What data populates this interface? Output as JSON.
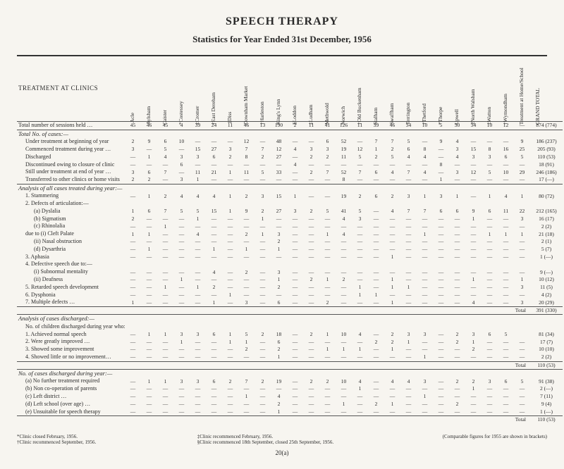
{
  "title": "SPEECH THERAPY",
  "subtitle": "Statistics for Year Ended 31st December, 1956",
  "side_label": "TREATMENT AT CLINICS",
  "columns": [
    "Acle",
    "Aylsham",
    "Caister",
    "*Costessey",
    "‡Cromer",
    "†East Dereham",
    "‡Diss",
    "Downham Market",
    "†Harleston",
    "King's Lynn",
    "§Loddon",
    "‡Ludham",
    "Methwold",
    "Norwich",
    "†Old Buckenham",
    "Stalham",
    "Swaffham",
    "Terrington",
    "†Thetford",
    "*Thorpe",
    "Upwell",
    "2North Walsham",
    "‡Watton",
    "†Wymondham",
    "Treatment at Home/School",
    "GRAND TOTAL"
  ],
  "groups": [
    {
      "rows": [
        {
          "label": "Total number of sessions held …",
          "cells": [
            "45",
            "46",
            "45",
            "4",
            "39",
            "24",
            "11",
            "46",
            "13",
            "190",
            "2",
            "11",
            "41",
            "126",
            "11",
            "39",
            "46",
            "34",
            "10",
            "5",
            "30",
            "34",
            "10",
            "12",
            "—",
            "874 (774)"
          ]
        }
      ]
    },
    {
      "header": "Total No. of cases:—",
      "rows": [
        {
          "label": "Under treatment at beginning of year",
          "sub": 1,
          "cells": [
            "2",
            "9",
            "6",
            "10",
            "—",
            "—",
            "—",
            "12",
            "—",
            "48",
            "—",
            "—",
            "6",
            "52",
            "—",
            "7",
            "7",
            "5",
            "—",
            "9",
            "4",
            "—",
            "—",
            "—",
            "9",
            "186 (237)"
          ]
        },
        {
          "label": "Commenced treatment during year …",
          "sub": 1,
          "cells": [
            "3",
            "—",
            "5",
            "—",
            "15",
            "27",
            "3",
            "7",
            "7",
            "12",
            "4",
            "3",
            "3",
            "19",
            "12",
            "1",
            "2",
            "6",
            "8",
            "—",
            "3",
            "15",
            "8",
            "16",
            "25",
            "205 (93)"
          ]
        },
        {
          "label": "Discharged",
          "sub": 1,
          "cells": [
            "—",
            "1",
            "4",
            "3",
            "3",
            "6",
            "2",
            "8",
            "2",
            "27",
            "—",
            "2",
            "2",
            "11",
            "5",
            "2",
            "5",
            "4",
            "4",
            "—",
            "4",
            "3",
            "3",
            "6",
            "5",
            "110 (53)"
          ]
        },
        {
          "label": "Discontinued owing to closure of clinic",
          "sub": 1,
          "cells": [
            "—",
            "—",
            "—",
            "6",
            "—",
            "—",
            "—",
            "—",
            "—",
            "—",
            "4",
            "—",
            "—",
            "—",
            "—",
            "—",
            "—",
            "—",
            "—",
            "8",
            "—",
            "—",
            "—",
            "—",
            "—",
            "18 (91)"
          ]
        },
        {
          "label": "Still under treatment at end of year …",
          "sub": 1,
          "cells": [
            "3",
            "6",
            "7",
            "—",
            "11",
            "21",
            "1",
            "11",
            "5",
            "33",
            "—",
            "2",
            "7",
            "52",
            "7",
            "6",
            "4",
            "7",
            "4",
            "—",
            "3",
            "12",
            "5",
            "10",
            "29",
            "246 (186)"
          ]
        },
        {
          "label": "Transferred to other clinics or home visits",
          "sub": 1,
          "cells": [
            "2",
            "2",
            "—",
            "3",
            "1",
            "—",
            "—",
            "—",
            "—",
            "—",
            "—",
            "—",
            "—",
            "8",
            "—",
            "—",
            "—",
            "—",
            "—",
            "1",
            "—",
            "—",
            "—",
            "—",
            "—",
            "17 (—)"
          ]
        }
      ]
    },
    {
      "header": "Analysis of all cases treated during year:—",
      "rows": [
        {
          "label": "1. Stammering",
          "sub": 1,
          "cells": [
            "—",
            "1",
            "2",
            "4",
            "4",
            "4",
            "1",
            "2",
            "3",
            "15",
            "1",
            "—",
            "—",
            "19",
            "2",
            "6",
            "2",
            "3",
            "1",
            "3",
            "1",
            "—",
            "1",
            "4",
            "1",
            "80 (72)"
          ]
        },
        {
          "label": "2. Defects of articulation:—",
          "sub": 1,
          "cells": [
            "",
            "",
            "",
            "",
            "",
            "",
            "",
            "",
            "",
            "",
            "",
            "",
            "",
            "",
            "",
            "",
            "",
            "",
            "",
            "",
            "",
            "",
            "",
            "",
            "",
            ""
          ]
        },
        {
          "label": "(a) Dyslalia",
          "sub": 2,
          "cells": [
            "1",
            "6",
            "7",
            "5",
            "5",
            "15",
            "1",
            "9",
            "2",
            "27",
            "3",
            "2",
            "5",
            "41",
            "5",
            "—",
            "4",
            "7",
            "7",
            "6",
            "6",
            "9",
            "6",
            "11",
            "22",
            "212 (165)"
          ]
        },
        {
          "label": "(b) Sigmatism",
          "sub": 2,
          "cells": [
            "2",
            "—",
            "—",
            "—",
            "1",
            "—",
            "—",
            "—",
            "1",
            "—",
            "—",
            "—",
            "—",
            "4",
            "3",
            "—",
            "—",
            "—",
            "—",
            "—",
            "—",
            "1",
            "—",
            "—",
            "3",
            "16 (17)"
          ]
        },
        {
          "label": "(c) Rhinolalia",
          "sub": 2,
          "cells": [
            "—",
            "—",
            "1",
            "—",
            "—",
            "—",
            "—",
            "—",
            "—",
            "—",
            "—",
            "—",
            "—",
            "—",
            "—",
            "—",
            "—",
            "—",
            "—",
            "—",
            "—",
            "—",
            "—",
            "—",
            "—",
            "2 (2)"
          ]
        },
        {
          "label": "due to (i) Cleft Palate",
          "sub": 1,
          "cells": [
            "1",
            "1",
            "—",
            "—",
            "4",
            "—",
            "—",
            "2",
            "1",
            "3",
            "—",
            "—",
            "1",
            "4",
            "—",
            "—",
            "—",
            "—",
            "1",
            "—",
            "—",
            "—",
            "1",
            "1",
            "1",
            "21 (18)"
          ]
        },
        {
          "label": "(ii) Nasal obstruction",
          "sub": 2,
          "cells": [
            "—",
            "—",
            "—",
            "—",
            "—",
            "—",
            "—",
            "—",
            "—",
            "2",
            "—",
            "—",
            "—",
            "—",
            "—",
            "—",
            "—",
            "—",
            "—",
            "—",
            "—",
            "—",
            "—",
            "—",
            "—",
            "2 (1)"
          ]
        },
        {
          "label": "(d) Dysarthria",
          "sub": 2,
          "cells": [
            "—",
            "1",
            "—",
            "—",
            "—",
            "1",
            "—",
            "1",
            "—",
            "1",
            "—",
            "—",
            "—",
            "—",
            "—",
            "—",
            "—",
            "—",
            "—",
            "—",
            "—",
            "—",
            "—",
            "—",
            "—",
            "5 (7)"
          ]
        },
        {
          "label": "3. Aphasia",
          "sub": 1,
          "cells": [
            "—",
            "—",
            "—",
            "—",
            "—",
            "—",
            "—",
            "—",
            "—",
            "—",
            "—",
            "—",
            "—",
            "—",
            "—",
            "—",
            "1",
            "—",
            "—",
            "—",
            "—",
            "—",
            "—",
            "—",
            "—",
            "1 (—)"
          ]
        },
        {
          "label": "4. Defective speech due to:—",
          "sub": 1,
          "cells": [
            "",
            "",
            "",
            "",
            "",
            "",
            "",
            "",
            "",
            "",
            "",
            "",
            "",
            "",
            "",
            "",
            "",
            "",
            "",
            "",
            "",
            "",
            "",
            "",
            "",
            ""
          ]
        },
        {
          "label": "(i) Subnormal mentality",
          "sub": 2,
          "cells": [
            "—",
            "—",
            "—",
            "—",
            "—",
            "4",
            "—",
            "2",
            "—",
            "3",
            "—",
            "—",
            "—",
            "—",
            "—",
            "—",
            "—",
            "—",
            "—",
            "—",
            "—",
            "—",
            "—",
            "—",
            "—",
            "9 (—)"
          ]
        },
        {
          "label": "(ii) Deafness",
          "sub": 2,
          "cells": [
            "—",
            "—",
            "—",
            "1",
            "—",
            "—",
            "—",
            "—",
            "—",
            "1",
            "—",
            "2",
            "1",
            "2",
            "—",
            "—",
            "1",
            "—",
            "—",
            "—",
            "—",
            "1",
            "—",
            "—",
            "1",
            "10 (12)"
          ]
        },
        {
          "label": "5. Retarded speech development",
          "sub": 1,
          "cells": [
            "—",
            "—",
            "1",
            "—",
            "1",
            "2",
            "—",
            "—",
            "—",
            "2",
            "—",
            "—",
            "—",
            "—",
            "1",
            "—",
            "1",
            "1",
            "—",
            "—",
            "—",
            "—",
            "—",
            "—",
            "3",
            "11 (5)"
          ]
        },
        {
          "label": "6. Dysphonia",
          "sub": 1,
          "cells": [
            "—",
            "—",
            "—",
            "—",
            "—",
            "—",
            "1",
            "—",
            "—",
            "—",
            "—",
            "—",
            "—",
            "—",
            "1",
            "1",
            "—",
            "—",
            "—",
            "—",
            "—",
            "—",
            "—",
            "—",
            "—",
            "4 (2)"
          ]
        },
        {
          "label": "7. Multiple defects …",
          "sub": 1,
          "cells": [
            "1",
            "—",
            "—",
            "—",
            "—",
            "1",
            "—",
            "3",
            "—",
            "6",
            "—",
            "—",
            "2",
            "—",
            "—",
            "—",
            "1",
            "—",
            "—",
            "—",
            "—",
            "4",
            "—",
            "—",
            "3",
            "20 (29)"
          ]
        }
      ],
      "total": {
        "label": "Total",
        "value": "391 (330)"
      }
    },
    {
      "header": "Analysis of cases discharged:—",
      "rows": [
        {
          "label": "No. of children discharged during year who:-",
          "sub": 1,
          "cells": [
            "",
            "",
            "",
            "",
            "",
            "",
            "",
            "",
            "",
            "",
            "",
            "",
            "",
            "",
            "",
            "",
            "",
            "",
            "",
            "",
            "",
            "",
            "",
            "",
            "",
            ""
          ]
        },
        {
          "label": "1. Achieved normal speech",
          "sub": 1,
          "cells": [
            "—",
            "1",
            "1",
            "3",
            "3",
            "6",
            "1",
            "5",
            "2",
            "18",
            "—",
            "2",
            "1",
            "10",
            "4",
            "—",
            "2",
            "3",
            "3",
            "—",
            "2",
            "3",
            "6",
            "5",
            "",
            "81 (34)"
          ]
        },
        {
          "label": "2. Were greatly improved …",
          "sub": 1,
          "cells": [
            "—",
            "—",
            "—",
            "1",
            "—",
            "—",
            "1",
            "1",
            "—",
            "6",
            "—",
            "—",
            "—",
            "—",
            "—",
            "2",
            "2",
            "1",
            "—",
            "—",
            "2",
            "1",
            "—",
            "—",
            "—",
            "17 (7)"
          ]
        },
        {
          "label": "3. Showed some improvement",
          "sub": 1,
          "cells": [
            "—",
            "—",
            "—",
            "—",
            "—",
            "—",
            "—",
            "2",
            "—",
            "2",
            "—",
            "—",
            "1",
            "1",
            "1",
            "—",
            "1",
            "—",
            "—",
            "—",
            "—",
            "2",
            "—",
            "—",
            "—",
            "10 (10)"
          ]
        },
        {
          "label": "4. Showed little or no improvement…",
          "sub": 1,
          "cells": [
            "—",
            "—",
            "—",
            "—",
            "—",
            "—",
            "—",
            "—",
            "—",
            "1",
            "—",
            "—",
            "—",
            "—",
            "—",
            "—",
            "—",
            "—",
            "1",
            "—",
            "—",
            "—",
            "—",
            "—",
            "—",
            "2 (2)"
          ]
        }
      ],
      "total": {
        "label": "Total",
        "value": "110 (53)"
      }
    },
    {
      "header": "No. of cases discharged during year:—",
      "rows": [
        {
          "label": "(a) No further treatment required",
          "sub": 1,
          "cells": [
            "—",
            "1",
            "1",
            "3",
            "3",
            "6",
            "2",
            "7",
            "2",
            "19",
            "—",
            "2",
            "2",
            "10",
            "4",
            "—",
            "4",
            "4",
            "3",
            "—",
            "2",
            "2",
            "3",
            "6",
            "5",
            "91 (38)"
          ]
        },
        {
          "label": "(b) Non co-operation of parents",
          "sub": 1,
          "cells": [
            "—",
            "—",
            "—",
            "—",
            "—",
            "—",
            "—",
            "—",
            "—",
            "—",
            "—",
            "—",
            "—",
            "—",
            "1",
            "—",
            "—",
            "—",
            "—",
            "—",
            "—",
            "1",
            "—",
            "—",
            "—",
            "2 (—)"
          ]
        },
        {
          "label": "(c) Left district …",
          "sub": 1,
          "cells": [
            "—",
            "—",
            "—",
            "—",
            "—",
            "—",
            "—",
            "1",
            "—",
            "4",
            "—",
            "—",
            "—",
            "—",
            "—",
            "—",
            "—",
            "—",
            "1",
            "—",
            "—",
            "—",
            "—",
            "—",
            "—",
            "7 (11)"
          ]
        },
        {
          "label": "(d) Left school (over age) …",
          "sub": 1,
          "cells": [
            "—",
            "—",
            "—",
            "—",
            "—",
            "—",
            "—",
            "—",
            "—",
            "2",
            "—",
            "—",
            "—",
            "1",
            "—",
            "2",
            "1",
            "—",
            "—",
            "—",
            "2",
            "—",
            "—",
            "—",
            "—",
            "9 (4)"
          ]
        },
        {
          "label": "(e) Unsuitable for speech therapy",
          "sub": 1,
          "cells": [
            "—",
            "—",
            "—",
            "—",
            "—",
            "—",
            "—",
            "—",
            "—",
            "1",
            "—",
            "—",
            "—",
            "—",
            "—",
            "—",
            "—",
            "—",
            "—",
            "—",
            "—",
            "—",
            "—",
            "—",
            "—",
            "1 (—)"
          ]
        }
      ],
      "total": {
        "label": "Total",
        "value": "110 (53)"
      }
    }
  ],
  "footnotes": {
    "left": [
      "*Clinic closed February, 1956.",
      "†Clinic recommenced September, 1956."
    ],
    "mid": [
      "‡Clinic recommenced February, 1956.",
      "§Clinic recommenced 18th September, closed 25th September, 1956."
    ],
    "right": "(Comparable figures for 1955 are shown in brackets)"
  },
  "pageno": "20(a)"
}
